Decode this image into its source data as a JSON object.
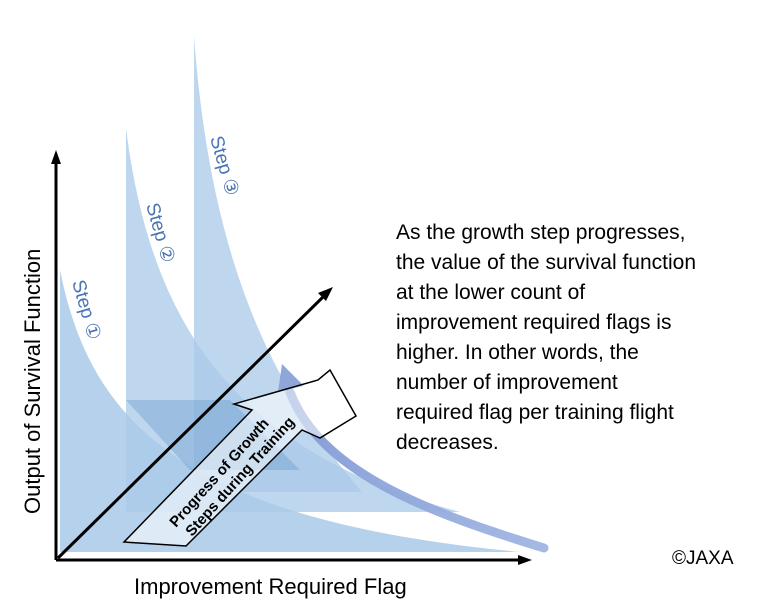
{
  "diagram": {
    "y_axis_label": "Output of Survival Function",
    "x_axis_label": "Improvement Required Flag",
    "steps": [
      "Step ①",
      "Step ②",
      "Step ③"
    ],
    "arrow_label_line1": "Progress of Growth",
    "arrow_label_line2": "Steps during Training",
    "colors": {
      "curve_fill": "#a9c9e8",
      "curve_overlap": "#7eacd7",
      "step_text": "#4a74b4",
      "sweep_arrow": "#8fa6d8",
      "axis": "#000000"
    }
  },
  "explanation": "As the growth step progresses,\nthe value of the survival function\nat the lower count of\nimprovement required flags is\nhigher. In other words, the\nnumber of improvement\nrequired flag per training flight\ndecreases.",
  "copyright": "©JAXA"
}
